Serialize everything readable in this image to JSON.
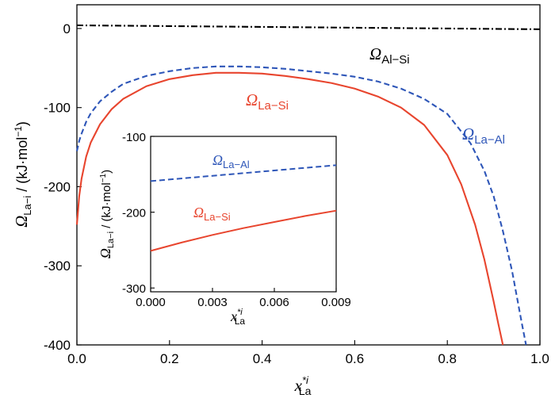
{
  "chart_data": [
    {
      "type": "line",
      "xlabel": "x*iLa",
      "ylabel": "ΩLa−i / (kJ·mol−1)",
      "xlim": [
        0.0,
        1.0
      ],
      "ylim": [
        -400,
        30
      ],
      "xticks": [
        "0.0",
        "0.2",
        "0.4",
        "0.6",
        "0.8",
        "1.0"
      ],
      "yticks": [
        "0",
        "-100",
        "-200",
        "-300",
        "-400"
      ],
      "grid": false,
      "series": [
        {
          "name": "ΩLa−Si",
          "color": "#e8452e",
          "style": "solid",
          "x": [
            0.0,
            0.005,
            0.01,
            0.02,
            0.03,
            0.05,
            0.075,
            0.1,
            0.15,
            0.2,
            0.25,
            0.3,
            0.35,
            0.4,
            0.45,
            0.5,
            0.55,
            0.6,
            0.65,
            0.7,
            0.75,
            0.8,
            0.83,
            0.86,
            0.88,
            0.9,
            0.91,
            0.92
          ],
          "y": [
            -248,
            -212,
            -190,
            -162,
            -144,
            -121,
            -102,
            -89,
            -73,
            -64,
            -59,
            -56,
            -56,
            -57,
            -60,
            -64,
            -69,
            -76,
            -86,
            -100,
            -122,
            -160,
            -197,
            -248,
            -292,
            -345,
            -373,
            -400
          ]
        },
        {
          "name": "ΩLa−Al",
          "color": "#2e56b8",
          "style": "dashed",
          "x": [
            0.0,
            0.005,
            0.01,
            0.02,
            0.03,
            0.05,
            0.075,
            0.1,
            0.15,
            0.2,
            0.25,
            0.3,
            0.35,
            0.4,
            0.45,
            0.5,
            0.55,
            0.6,
            0.65,
            0.7,
            0.75,
            0.8,
            0.85,
            0.88,
            0.9,
            0.92,
            0.94,
            0.96,
            0.97
          ],
          "y": [
            -155,
            -142,
            -133,
            -118,
            -107,
            -92,
            -80,
            -70,
            -60,
            -54,
            -50,
            -48,
            -48,
            -49,
            -51,
            -54,
            -57,
            -61,
            -67,
            -76,
            -89,
            -108,
            -145,
            -180,
            -212,
            -256,
            -307,
            -370,
            -400
          ]
        },
        {
          "name": "ΩAl−Si",
          "color": "#000000",
          "style": "dashdot",
          "x": [
            0.0,
            1.0
          ],
          "y": [
            4,
            -1
          ]
        }
      ],
      "annotations": [
        {
          "text": "Ω",
          "sub": "La−Si",
          "color": "#e8452e"
        },
        {
          "text": "Ω",
          "sub": "La−Al",
          "color": "#2e56b8"
        },
        {
          "text": "Ω",
          "sub": "Al−Si",
          "color": "#000000"
        }
      ]
    },
    {
      "type": "line",
      "role": "inset",
      "xlabel": "x*iLa",
      "ylabel": "ΩLa−i / (kJ·mol−1)",
      "xlim": [
        0.0,
        0.009
      ],
      "ylim": [
        -305,
        -100
      ],
      "xticks": [
        "0.000",
        "0.003",
        "0.006",
        "0.009"
      ],
      "yticks": [
        "-100",
        "-200",
        "-300"
      ],
      "series": [
        {
          "name": "ΩLa−Si",
          "color": "#e8452e",
          "style": "solid",
          "x": [
            0.0,
            0.0015,
            0.003,
            0.0045,
            0.006,
            0.0075,
            0.009
          ],
          "y": [
            -251,
            -240,
            -230,
            -221,
            -213,
            -205,
            -198
          ]
        },
        {
          "name": "ΩLa−Al",
          "color": "#2e56b8",
          "style": "dashed",
          "x": [
            0.0,
            0.003,
            0.006,
            0.009
          ],
          "y": [
            -159,
            -152,
            -145,
            -138
          ]
        }
      ]
    }
  ],
  "labels": {
    "main_ylabel_omega": "Ω",
    "main_ylabel_sub": "La−i",
    "main_ylabel_rest": " / (kJ·mol",
    "main_ylabel_exp": "−1",
    "main_ylabel_close": ")",
    "xlabel_main": "x",
    "xlabel_sup": "*i",
    "xlabel_sub": "La",
    "ann_la_si": "Ω",
    "ann_la_si_sub": "La−Si",
    "ann_la_al": "Ω",
    "ann_la_al_sub": "La−Al",
    "ann_al_si": "Ω",
    "ann_al_si_sub": "Al−Si"
  }
}
